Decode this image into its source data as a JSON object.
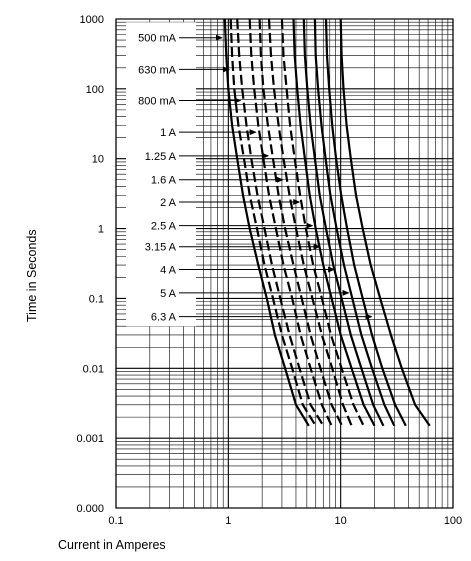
{
  "chart_data": {
    "type": "line",
    "title": "",
    "xlabel": "Current in Amperes",
    "ylabel": "Time in Seconds",
    "x_scale": "log",
    "y_scale": "log",
    "xlim": [
      0.1,
      100
    ],
    "ylim": [
      0.0001,
      1000
    ],
    "x_ticks": [
      {
        "value": 0.1,
        "label": "0.1"
      },
      {
        "value": 1,
        "label": "1"
      },
      {
        "value": 10,
        "label": "10"
      },
      {
        "value": 100,
        "label": "100"
      }
    ],
    "y_ticks": [
      {
        "value": 1000,
        "label": "1000"
      },
      {
        "value": 100,
        "label": "100"
      },
      {
        "value": 10,
        "label": "10"
      },
      {
        "value": 1,
        "label": "1"
      },
      {
        "value": 0.1,
        "label": "0.1"
      },
      {
        "value": 0.01,
        "label": "0.01"
      },
      {
        "value": 0.001,
        "label": "0.001"
      },
      {
        "value": 0.0001,
        "label": "0.000"
      }
    ],
    "grid": true,
    "legend": "inline labels with arrows",
    "line_color": "#000000",
    "series": [
      {
        "name": "500 mA",
        "points": [
          [
            0.93,
            1000
          ],
          [
            0.96,
            300
          ],
          [
            1.0,
            100
          ],
          [
            1.08,
            30
          ],
          [
            1.2,
            10
          ],
          [
            1.35,
            3
          ],
          [
            1.55,
            1
          ],
          [
            1.85,
            0.3
          ],
          [
            2.2,
            0.1
          ],
          [
            2.6,
            0.03
          ],
          [
            3.2,
            0.01
          ],
          [
            4.0,
            0.003
          ],
          [
            5.2,
            0.0015
          ]
        ]
      },
      {
        "name": "630 mA",
        "points": [
          [
            1.05,
            1000
          ],
          [
            1.08,
            300
          ],
          [
            1.13,
            100
          ],
          [
            1.23,
            30
          ],
          [
            1.38,
            10
          ],
          [
            1.55,
            3
          ],
          [
            1.8,
            1
          ],
          [
            2.1,
            0.3
          ],
          [
            2.5,
            0.1
          ],
          [
            3.0,
            0.03
          ],
          [
            3.7,
            0.01
          ],
          [
            4.6,
            0.003
          ],
          [
            6.0,
            0.0015
          ]
        ]
      },
      {
        "name": "800 mA",
        "points": [
          [
            1.2,
            1000
          ],
          [
            1.25,
            300
          ],
          [
            1.33,
            100
          ],
          [
            1.45,
            30
          ],
          [
            1.6,
            10
          ],
          [
            1.82,
            3
          ],
          [
            2.1,
            1
          ],
          [
            2.45,
            0.3
          ],
          [
            2.9,
            0.1
          ],
          [
            3.5,
            0.03
          ],
          [
            4.3,
            0.01
          ],
          [
            5.4,
            0.003
          ],
          [
            7.0,
            0.0015
          ]
        ]
      },
      {
        "name": "1 A",
        "points": [
          [
            1.55,
            1000
          ],
          [
            1.6,
            300
          ],
          [
            1.7,
            100
          ],
          [
            1.85,
            30
          ],
          [
            2.05,
            10
          ],
          [
            2.3,
            3
          ],
          [
            2.65,
            1
          ],
          [
            3.1,
            0.3
          ],
          [
            3.7,
            0.1
          ],
          [
            4.4,
            0.03
          ],
          [
            5.4,
            0.01
          ],
          [
            6.8,
            0.003
          ],
          [
            8.3,
            0.0015
          ]
        ]
      },
      {
        "name": "1.25 A",
        "points": [
          [
            1.9,
            1000
          ],
          [
            1.95,
            300
          ],
          [
            2.05,
            100
          ],
          [
            2.25,
            30
          ],
          [
            2.5,
            10
          ],
          [
            2.8,
            3
          ],
          [
            3.2,
            1
          ],
          [
            3.8,
            0.3
          ],
          [
            4.5,
            0.1
          ],
          [
            5.4,
            0.03
          ],
          [
            6.6,
            0.01
          ],
          [
            8.3,
            0.003
          ],
          [
            10.3,
            0.0015
          ]
        ]
      },
      {
        "name": "1.6 A",
        "points": [
          [
            2.3,
            1000
          ],
          [
            2.4,
            300
          ],
          [
            2.55,
            100
          ],
          [
            2.8,
            30
          ],
          [
            3.1,
            10
          ],
          [
            3.5,
            3
          ],
          [
            4.0,
            1
          ],
          [
            4.7,
            0.3
          ],
          [
            5.6,
            0.1
          ],
          [
            6.8,
            0.03
          ],
          [
            8.4,
            0.01
          ],
          [
            10.5,
            0.003
          ],
          [
            12.5,
            0.0015
          ]
        ]
      },
      {
        "name": "2 A",
        "points": [
          [
            3.0,
            1000
          ],
          [
            3.1,
            300
          ],
          [
            3.3,
            100
          ],
          [
            3.55,
            30
          ],
          [
            3.9,
            10
          ],
          [
            4.35,
            3
          ],
          [
            4.9,
            1
          ],
          [
            5.7,
            0.3
          ],
          [
            6.8,
            0.1
          ],
          [
            8.2,
            0.03
          ],
          [
            10.2,
            0.01
          ],
          [
            13.0,
            0.003
          ],
          [
            16.0,
            0.0015
          ]
        ]
      },
      {
        "name": "2.5 A",
        "points": [
          [
            3.8,
            1000
          ],
          [
            3.9,
            300
          ],
          [
            4.1,
            100
          ],
          [
            4.4,
            30
          ],
          [
            4.8,
            10
          ],
          [
            5.3,
            3
          ],
          [
            6.0,
            1
          ],
          [
            7.0,
            0.3
          ],
          [
            8.3,
            0.1
          ],
          [
            10.0,
            0.03
          ],
          [
            12.5,
            0.01
          ],
          [
            16.0,
            0.003
          ],
          [
            20.0,
            0.0015
          ]
        ]
      },
      {
        "name": "3.15 A",
        "points": [
          [
            4.7,
            1000
          ],
          [
            4.8,
            300
          ],
          [
            5.05,
            100
          ],
          [
            5.4,
            30
          ],
          [
            5.9,
            10
          ],
          [
            6.5,
            3
          ],
          [
            7.4,
            1
          ],
          [
            8.6,
            0.3
          ],
          [
            10.2,
            0.1
          ],
          [
            12.3,
            0.03
          ],
          [
            15.3,
            0.01
          ],
          [
            19.5,
            0.003
          ],
          [
            24.0,
            0.0015
          ]
        ]
      },
      {
        "name": "4 A",
        "points": [
          [
            5.9,
            1000
          ],
          [
            6.0,
            300
          ],
          [
            6.3,
            100
          ],
          [
            6.75,
            30
          ],
          [
            7.35,
            10
          ],
          [
            8.1,
            3
          ],
          [
            9.2,
            1
          ],
          [
            10.7,
            0.3
          ],
          [
            12.7,
            0.1
          ],
          [
            15.3,
            0.03
          ],
          [
            19.0,
            0.01
          ],
          [
            24.5,
            0.003
          ],
          [
            30.0,
            0.0015
          ]
        ]
      },
      {
        "name": "5 A",
        "points": [
          [
            7.4,
            1000
          ],
          [
            7.55,
            300
          ],
          [
            7.9,
            100
          ],
          [
            8.4,
            30
          ],
          [
            9.1,
            10
          ],
          [
            10.1,
            3
          ],
          [
            11.4,
            1
          ],
          [
            13.2,
            0.3
          ],
          [
            15.7,
            0.1
          ],
          [
            19.0,
            0.03
          ],
          [
            23.5,
            0.01
          ],
          [
            30.5,
            0.003
          ],
          [
            38.0,
            0.0015
          ]
        ]
      },
      {
        "name": "6.3 A",
        "points": [
          [
            10.0,
            1000
          ],
          [
            10.2,
            300
          ],
          [
            10.6,
            100
          ],
          [
            11.3,
            30
          ],
          [
            12.3,
            10
          ],
          [
            13.7,
            3
          ],
          [
            15.7,
            1
          ],
          [
            18.5,
            0.3
          ],
          [
            22.5,
            0.1
          ],
          [
            28.0,
            0.03
          ],
          [
            35.0,
            0.01
          ],
          [
            46.0,
            0.003
          ],
          [
            62.0,
            0.0015
          ]
        ]
      }
    ],
    "labels": [
      {
        "text": "500 mA",
        "y": 540,
        "x_end": 0.93
      },
      {
        "text": "630 mA",
        "y": 190,
        "x_end": 1.08
      },
      {
        "text": "800 mA",
        "y": 68,
        "x_end": 1.36
      },
      {
        "text": "1 A",
        "y": 24,
        "x_end": 1.86
      },
      {
        "text": "1.25 A",
        "y": 11,
        "x_end": 2.4
      },
      {
        "text": "1.6 A",
        "y": 5,
        "x_end": 3.25
      },
      {
        "text": "2 A",
        "y": 2.4,
        "x_end": 4.55
      },
      {
        "text": "2.5 A",
        "y": 1.1,
        "x_end": 5.95
      },
      {
        "text": "3.15 A",
        "y": 0.55,
        "x_end": 6.9
      },
      {
        "text": "4 A",
        "y": 0.26,
        "x_end": 9.3
      },
      {
        "text": "5 A",
        "y": 0.12,
        "x_end": 12.5
      },
      {
        "text": "6.3 A",
        "y": 0.055,
        "x_end": 20.0
      }
    ]
  }
}
